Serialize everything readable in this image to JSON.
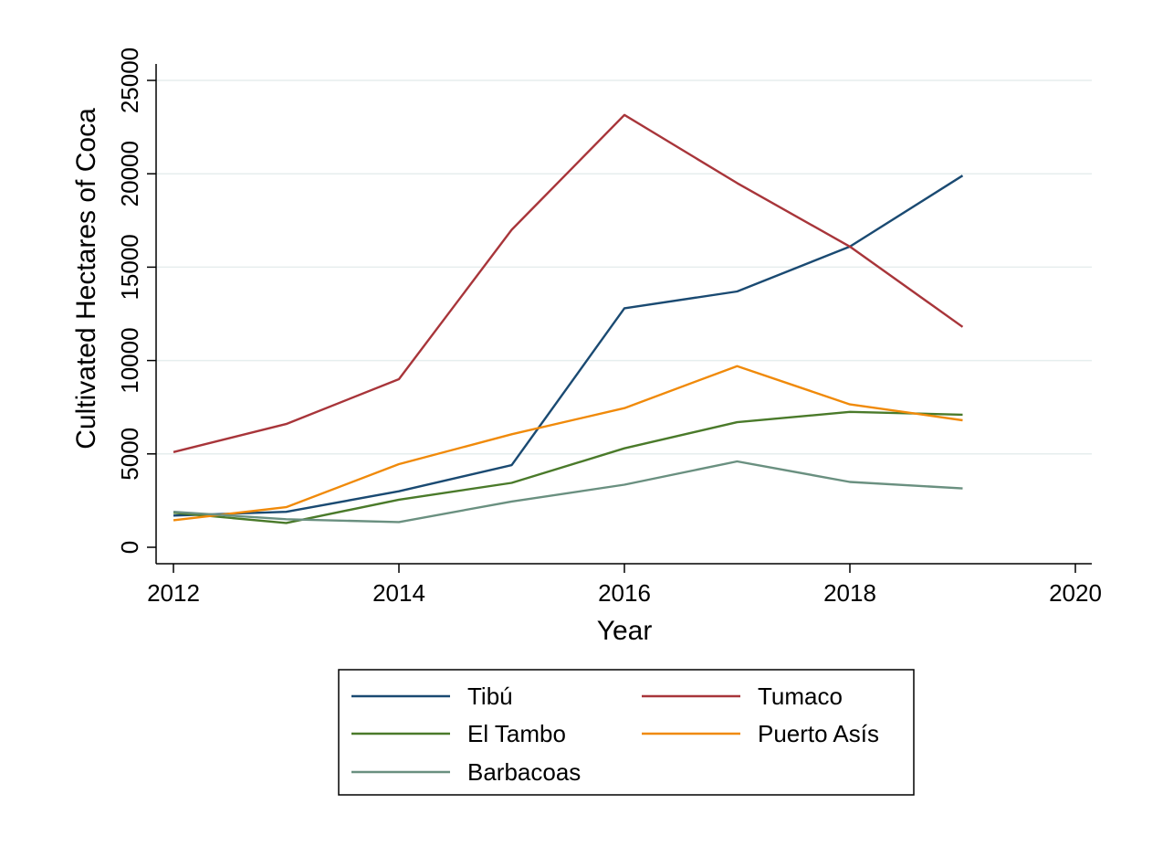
{
  "chart_data": {
    "type": "line",
    "title": "",
    "xlabel": "Year",
    "ylabel": "Cultivated Hectares of Coca",
    "xlim": [
      2012,
      2020
    ],
    "ylim": [
      0,
      25000
    ],
    "x_ticks": [
      "2012",
      "2014",
      "2016",
      "2018",
      "2020"
    ],
    "y_ticks": [
      "0",
      "5000",
      "10000",
      "15000",
      "20000",
      "25000"
    ],
    "grid": true,
    "legend_position": "bottom",
    "x": [
      2012,
      2013,
      2014,
      2015,
      2016,
      2017,
      2018,
      2019
    ],
    "series": [
      {
        "name": "Tibú",
        "color": "#1a4a72",
        "values": [
          1700,
          1900,
          3000,
          4400,
          12800,
          13700,
          16100,
          19900
        ]
      },
      {
        "name": "Tumaco",
        "color": "#a8353a",
        "values": [
          5100,
          6600,
          9000,
          17000,
          23150,
          19500,
          16100,
          11800
        ]
      },
      {
        "name": "El Tambo",
        "color": "#4a7a2a",
        "values": [
          1850,
          1300,
          2550,
          3450,
          5300,
          6700,
          7250,
          7100
        ]
      },
      {
        "name": "Puerto Asís",
        "color": "#f08a0a",
        "values": [
          1450,
          2150,
          4450,
          6050,
          7450,
          9700,
          7650,
          6800
        ]
      },
      {
        "name": "Barbacoas",
        "color": "#6a9080",
        "values": [
          1900,
          1500,
          1350,
          2450,
          3350,
          4600,
          3500,
          3150
        ]
      }
    ]
  }
}
